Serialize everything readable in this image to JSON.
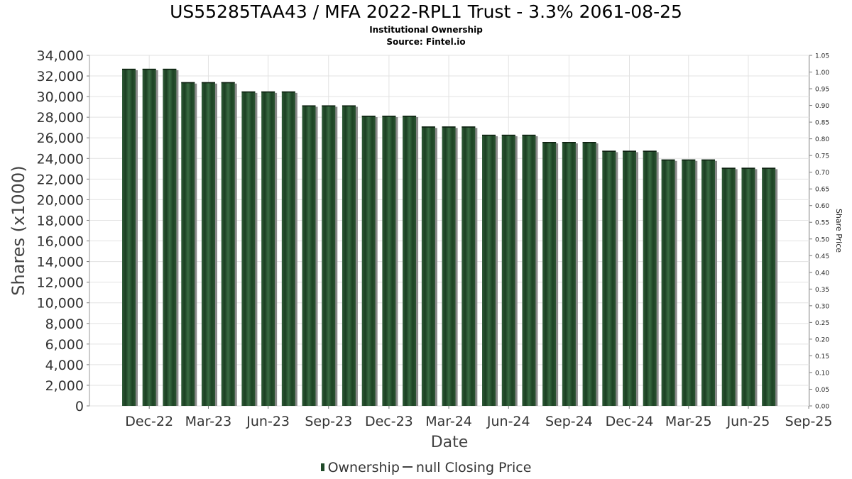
{
  "chart_data": {
    "type": "bar",
    "title": "US55285TAA43 / MFA 2022-RPL1 Trust - 3.3% 2061-08-25",
    "subtitle": "Institutional Ownership",
    "source": "Source: Fintel.io",
    "xlabel": "Date",
    "ylabel": "Shares (x1000)",
    "y2label": "Share Price",
    "ylim": [
      0,
      34000
    ],
    "y2lim": [
      0,
      1.05
    ],
    "xlim": [
      "2022-10-01",
      "2025-10-01"
    ],
    "grid": true,
    "legend_position": "bottom",
    "x_ticks": [
      {
        "label": "Dec-22",
        "date": "2022-12-31"
      },
      {
        "label": "Mar-23",
        "date": "2023-03-31"
      },
      {
        "label": "Jun-23",
        "date": "2023-06-30"
      },
      {
        "label": "Sep-23",
        "date": "2023-09-30"
      },
      {
        "label": "Dec-23",
        "date": "2023-12-31"
      },
      {
        "label": "Mar-24",
        "date": "2024-03-31"
      },
      {
        "label": "Jun-24",
        "date": "2024-06-30"
      },
      {
        "label": "Sep-24",
        "date": "2024-09-30"
      },
      {
        "label": "Dec-24",
        "date": "2024-12-31"
      },
      {
        "label": "Mar-25",
        "date": "2025-03-31"
      },
      {
        "label": "Jun-25",
        "date": "2025-06-30"
      },
      {
        "label": "Sep-25",
        "date": "2025-09-30"
      }
    ],
    "y_ticks": [
      0,
      2000,
      4000,
      6000,
      8000,
      10000,
      12000,
      14000,
      16000,
      18000,
      20000,
      22000,
      24000,
      26000,
      28000,
      30000,
      32000,
      34000
    ],
    "y_tick_labels": [
      "0",
      "2,000",
      "4,000",
      "6,000",
      "8,000",
      "10,000",
      "12,000",
      "14,000",
      "16,000",
      "18,000",
      "20,000",
      "22,000",
      "24,000",
      "26,000",
      "28,000",
      "30,000",
      "32,000",
      "34,000"
    ],
    "y2_ticks": [
      "0.00",
      "0.05",
      "0.10",
      "0.15",
      "0.20",
      "0.25",
      "0.30",
      "0.35",
      "0.40",
      "0.45",
      "0.50",
      "0.55",
      "0.60",
      "0.65",
      "0.70",
      "0.75",
      "0.80",
      "0.85",
      "0.90",
      "0.95",
      "1.00",
      "1.05"
    ],
    "series": [
      {
        "name": "Ownership",
        "color": "#1f4a28",
        "points": [
          {
            "date": "2022-11-30",
            "value": 32700
          },
          {
            "date": "2022-12-31",
            "value": 32700
          },
          {
            "date": "2023-01-31",
            "value": 32700
          },
          {
            "date": "2023-02-28",
            "value": 31400
          },
          {
            "date": "2023-03-31",
            "value": 31400
          },
          {
            "date": "2023-04-30",
            "value": 31400
          },
          {
            "date": "2023-05-31",
            "value": 30500
          },
          {
            "date": "2023-06-30",
            "value": 30500
          },
          {
            "date": "2023-07-31",
            "value": 30500
          },
          {
            "date": "2023-08-31",
            "value": 29150
          },
          {
            "date": "2023-09-30",
            "value": 29150
          },
          {
            "date": "2023-10-31",
            "value": 29150
          },
          {
            "date": "2023-11-30",
            "value": 28150
          },
          {
            "date": "2023-12-31",
            "value": 28150
          },
          {
            "date": "2024-01-31",
            "value": 28150
          },
          {
            "date": "2024-02-29",
            "value": 27100
          },
          {
            "date": "2024-03-31",
            "value": 27100
          },
          {
            "date": "2024-04-30",
            "value": 27100
          },
          {
            "date": "2024-05-31",
            "value": 26300
          },
          {
            "date": "2024-06-30",
            "value": 26300
          },
          {
            "date": "2024-07-31",
            "value": 26300
          },
          {
            "date": "2024-08-31",
            "value": 25600
          },
          {
            "date": "2024-09-30",
            "value": 25600
          },
          {
            "date": "2024-10-31",
            "value": 25600
          },
          {
            "date": "2024-11-30",
            "value": 24750
          },
          {
            "date": "2024-12-31",
            "value": 24750
          },
          {
            "date": "2025-01-31",
            "value": 24750
          },
          {
            "date": "2025-02-28",
            "value": 23900
          },
          {
            "date": "2025-03-31",
            "value": 23900
          },
          {
            "date": "2025-04-30",
            "value": 23900
          },
          {
            "date": "2025-05-31",
            "value": 23100
          },
          {
            "date": "2025-06-30",
            "value": 23100
          },
          {
            "date": "2025-07-31",
            "value": 23100
          }
        ]
      },
      {
        "name": "null Closing Price",
        "color": "#444444",
        "points": []
      }
    ]
  }
}
